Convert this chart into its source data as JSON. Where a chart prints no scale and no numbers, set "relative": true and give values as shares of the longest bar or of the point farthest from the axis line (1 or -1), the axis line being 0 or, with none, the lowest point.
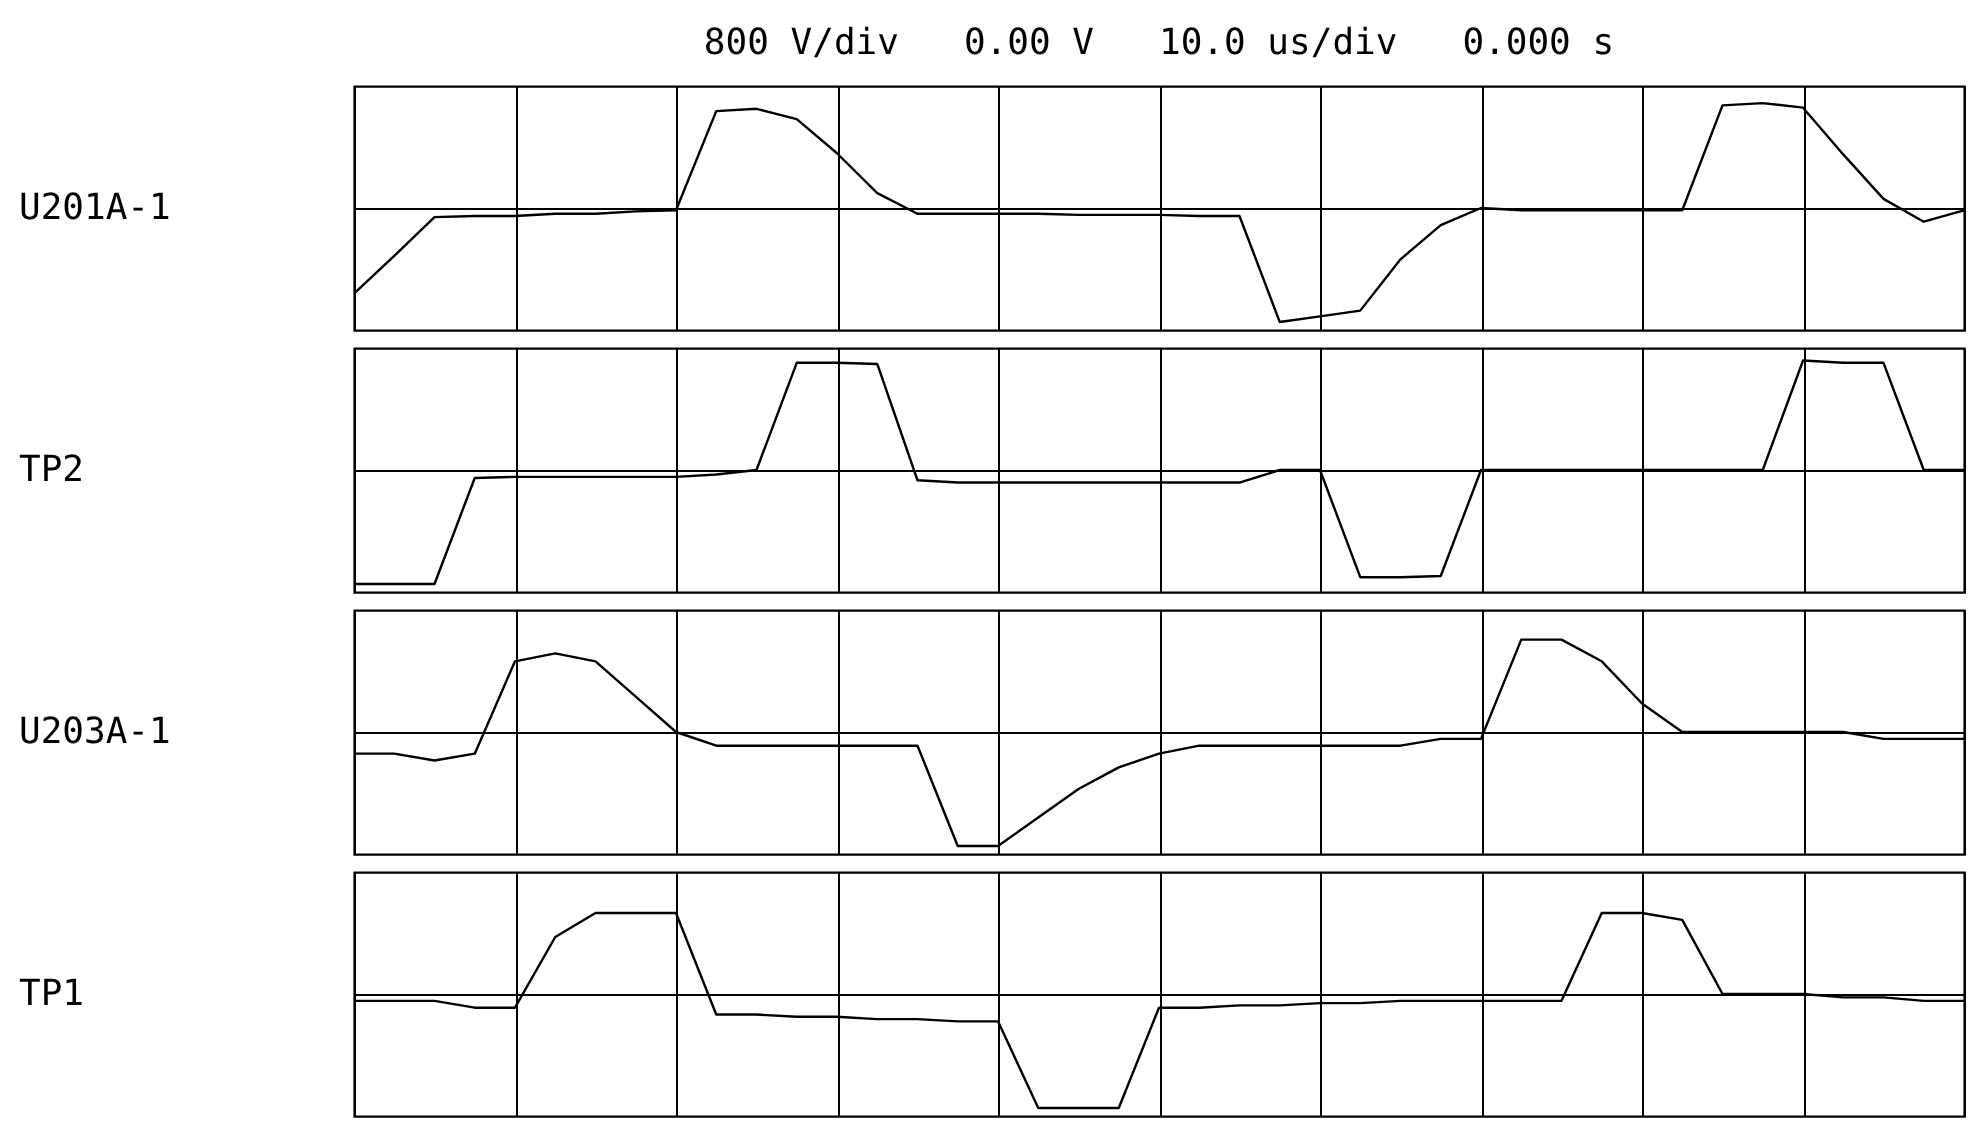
{
  "chart_data": [
    {
      "type": "line",
      "title": "800 V/div   0.00 V   10.0 us/div   0.000 s",
      "ylabel": "U201A-1",
      "relative": true,
      "grid": true,
      "tick_labels": false,
      "categories": [
        null,
        null,
        null,
        null,
        null,
        null,
        null,
        null,
        null,
        null,
        null,
        null,
        null,
        null,
        null,
        null,
        null,
        null,
        null,
        null,
        null,
        null,
        null,
        null,
        null,
        null,
        null,
        null,
        null,
        null,
        null,
        null,
        null,
        null,
        null,
        null,
        null,
        null,
        null,
        null,
        null
      ],
      "series": [
        {
          "color": "#000000",
          "values": [
            -0.75,
            -0.42,
            -0.08,
            -0.07,
            -0.07,
            -0.05,
            -0.05,
            -0.03,
            -0.02,
            0.85,
            0.87,
            0.78,
            0.48,
            0.13,
            -0.05,
            -0.05,
            -0.05,
            -0.05,
            -0.06,
            -0.06,
            -0.06,
            -0.07,
            -0.07,
            -1,
            -0.95,
            -0.9,
            -0.45,
            -0.15,
            0,
            -0.02,
            -0.02,
            -0.02,
            -0.02,
            -0.02,
            0.9,
            0.92,
            0.88,
            0.47,
            0.08,
            -0.12,
            -0.02
          ]
        }
      ]
    },
    {
      "type": "line",
      "ylabel": "TP2",
      "relative": true,
      "grid": true,
      "tick_labels": false,
      "categories": [
        null,
        null,
        null,
        null,
        null,
        null,
        null,
        null,
        null,
        null,
        null,
        null,
        null,
        null,
        null,
        null,
        null,
        null,
        null,
        null,
        null,
        null,
        null,
        null,
        null,
        null,
        null,
        null,
        null,
        null,
        null,
        null,
        null,
        null,
        null,
        null,
        null,
        null,
        null,
        null,
        null
      ],
      "series": [
        {
          "color": "#000000",
          "values": [
            -1,
            -1,
            -1,
            -0.07,
            -0.06,
            -0.06,
            -0.06,
            -0.06,
            -0.06,
            -0.04,
            0,
            0.94,
            0.94,
            0.93,
            -0.09,
            -0.11,
            -0.11,
            -0.11,
            -0.11,
            -0.11,
            -0.11,
            -0.11,
            -0.11,
            0,
            0,
            -0.94,
            -0.94,
            -0.93,
            0,
            0,
            0,
            0,
            0,
            0,
            0,
            0,
            0.96,
            0.94,
            0.94,
            0,
            0
          ]
        }
      ]
    },
    {
      "type": "line",
      "ylabel": "U203A-1",
      "relative": true,
      "grid": true,
      "tick_labels": false,
      "categories": [
        null,
        null,
        null,
        null,
        null,
        null,
        null,
        null,
        null,
        null,
        null,
        null,
        null,
        null,
        null,
        null,
        null,
        null,
        null,
        null,
        null,
        null,
        null,
        null,
        null,
        null,
        null,
        null,
        null,
        null,
        null,
        null,
        null,
        null,
        null,
        null,
        null,
        null,
        null,
        null,
        null
      ],
      "series": [
        {
          "color": "#000000",
          "values": [
            -0.19,
            -0.19,
            -0.25,
            -0.19,
            0.62,
            0.69,
            0.62,
            0.31,
            0,
            -0.12,
            -0.12,
            -0.12,
            -0.12,
            -0.12,
            -0.12,
            -1,
            -1,
            -0.75,
            -0.5,
            -0.31,
            -0.19,
            -0.12,
            -0.12,
            -0.12,
            -0.12,
            -0.12,
            -0.12,
            -0.06,
            -0.06,
            0.81,
            0.81,
            0.62,
            0.25,
            0,
            0,
            0,
            0,
            0,
            -0.06,
            -0.06,
            -0.06
          ]
        }
      ]
    },
    {
      "type": "line",
      "ylabel": "TP1",
      "relative": true,
      "grid": true,
      "tick_labels": false,
      "categories": [
        null,
        null,
        null,
        null,
        null,
        null,
        null,
        null,
        null,
        null,
        null,
        null,
        null,
        null,
        null,
        null,
        null,
        null,
        null,
        null,
        null,
        null,
        null,
        null,
        null,
        null,
        null,
        null,
        null,
        null,
        null,
        null,
        null,
        null,
        null,
        null,
        null,
        null,
        null,
        null,
        null
      ],
      "series": [
        {
          "color": "#000000",
          "values": [
            -0.06,
            -0.06,
            -0.06,
            -0.12,
            -0.12,
            0.5,
            0.71,
            0.71,
            0.71,
            -0.18,
            -0.18,
            -0.2,
            -0.2,
            -0.22,
            -0.22,
            -0.24,
            -0.24,
            -1,
            -1,
            -1,
            -0.12,
            -0.12,
            -0.1,
            -0.1,
            -0.08,
            -0.08,
            -0.06,
            -0.06,
            -0.06,
            -0.06,
            -0.06,
            0.71,
            0.71,
            0.65,
            0,
            0,
            0,
            -0.03,
            -0.03,
            -0.06,
            -0.06
          ]
        }
      ]
    }
  ]
}
